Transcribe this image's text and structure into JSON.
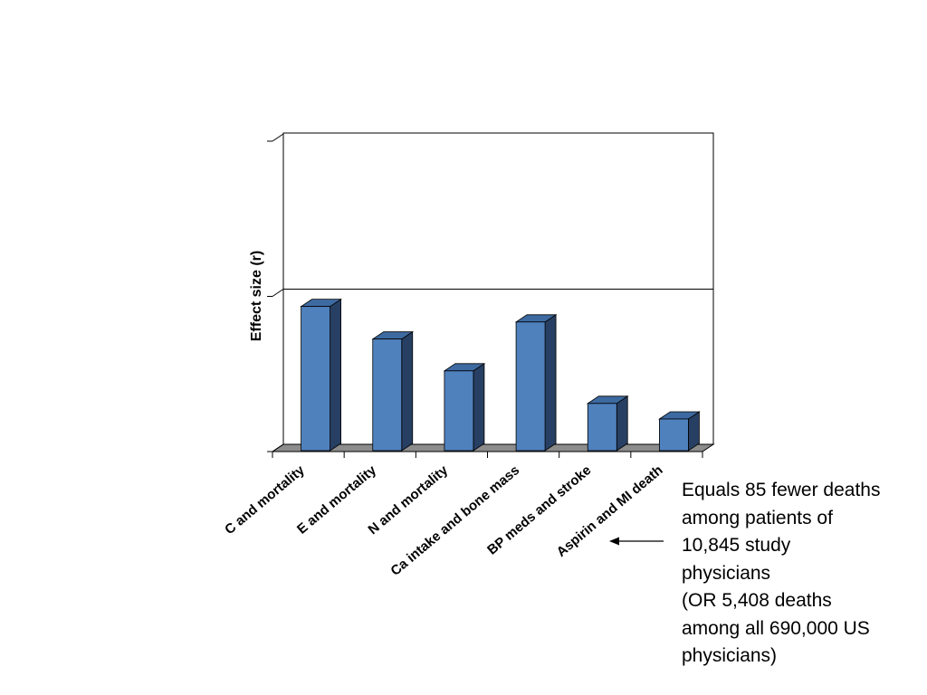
{
  "chart_data": {
    "type": "bar",
    "categories": [
      "C and mortality",
      "E and mortality",
      "N and mortality",
      "Ca intake and bone mass",
      "BP meds and stroke",
      "Aspirin and MI death"
    ],
    "values": [
      0.0935,
      0.0725,
      0.052,
      0.0835,
      0.031,
      0.021
    ],
    "title": "",
    "xlabel": "",
    "ylabel": "Effect size (r)",
    "ylim": [
      0,
      0.2
    ],
    "y_gridlines": [
      0.1
    ],
    "bar_style": "3d",
    "colors": {
      "bar_front": "#4f81bd",
      "bar_top": "#3d6aa0",
      "bar_side": "#273f62",
      "floor": "#8c8c8c"
    }
  },
  "annotation": {
    "lines": [
      "Equals 85 fewer deaths",
      "among patients of",
      "10,845 study",
      "physicians",
      "(OR 5,408 deaths",
      "among all 690,000 US",
      "physicians)"
    ],
    "arrow": "left-arrow"
  }
}
